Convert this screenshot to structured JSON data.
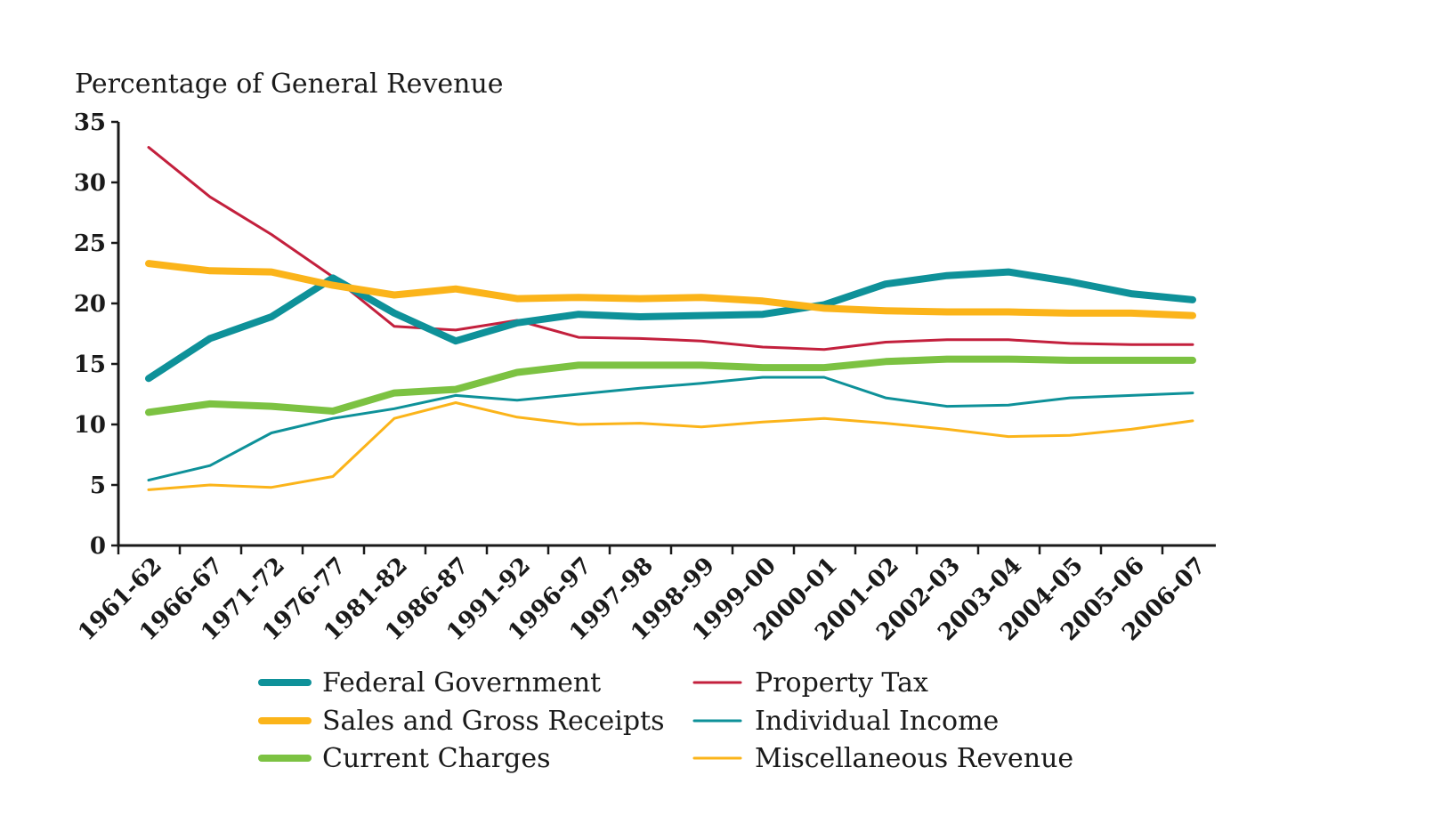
{
  "chart_data": {
    "type": "line",
    "title": "",
    "xlabel": "",
    "ylabel": "Percentage of General Revenue",
    "ylim": [
      0,
      35
    ],
    "yticks": [
      0,
      5,
      10,
      15,
      20,
      25,
      30,
      35
    ],
    "grid": false,
    "legend_position": "bottom",
    "categories": [
      "1961-62",
      "1966-67",
      "1971-72",
      "1976-77",
      "1981-82",
      "1986-87",
      "1991-92",
      "1996-97",
      "1997-98",
      "1998-99",
      "1999-00",
      "2000-01",
      "2001-02",
      "2002-03",
      "2003-04",
      "2004-05",
      "2005-06",
      "2006-07"
    ],
    "series": [
      {
        "name": "Federal Government",
        "color": "#0e9199",
        "weight": "thick",
        "values": [
          13.8,
          17.1,
          18.9,
          22.1,
          19.2,
          16.9,
          18.4,
          19.1,
          18.9,
          19.0,
          19.1,
          19.9,
          21.6,
          22.3,
          22.6,
          21.8,
          20.8,
          20.3
        ]
      },
      {
        "name": "Sales and Gross Receipts",
        "color": "#fbb41a",
        "weight": "thick",
        "values": [
          23.3,
          22.7,
          22.6,
          21.5,
          20.7,
          21.2,
          20.4,
          20.5,
          20.4,
          20.5,
          20.2,
          19.6,
          19.4,
          19.3,
          19.3,
          19.2,
          19.2,
          19.0
        ]
      },
      {
        "name": "Current Charges",
        "color": "#7cc242",
        "weight": "thick",
        "values": [
          11.0,
          11.7,
          11.5,
          11.1,
          12.6,
          12.9,
          14.3,
          14.9,
          14.9,
          14.9,
          14.7,
          14.7,
          15.2,
          15.4,
          15.4,
          15.3,
          15.3,
          15.3
        ]
      },
      {
        "name": "Property Tax",
        "color": "#c3203d",
        "weight": "thin",
        "values": [
          32.9,
          28.8,
          25.7,
          22.2,
          18.1,
          17.8,
          18.6,
          17.2,
          17.1,
          16.9,
          16.4,
          16.2,
          16.8,
          17.0,
          17.0,
          16.7,
          16.6,
          16.6
        ]
      },
      {
        "name": "Individual Income",
        "color": "#0e9199",
        "weight": "thin",
        "values": [
          5.4,
          6.6,
          9.3,
          10.5,
          11.3,
          12.4,
          12.0,
          12.5,
          13.0,
          13.4,
          13.9,
          13.9,
          12.2,
          11.5,
          11.6,
          12.2,
          12.4,
          12.6
        ]
      },
      {
        "name": "Miscellaneous Revenue",
        "color": "#fbb41a",
        "weight": "thin",
        "values": [
          4.6,
          5.0,
          4.8,
          5.7,
          10.5,
          11.8,
          10.6,
          10.0,
          10.1,
          9.8,
          10.2,
          10.5,
          10.1,
          9.6,
          9.0,
          9.1,
          9.6,
          10.3
        ]
      }
    ]
  }
}
